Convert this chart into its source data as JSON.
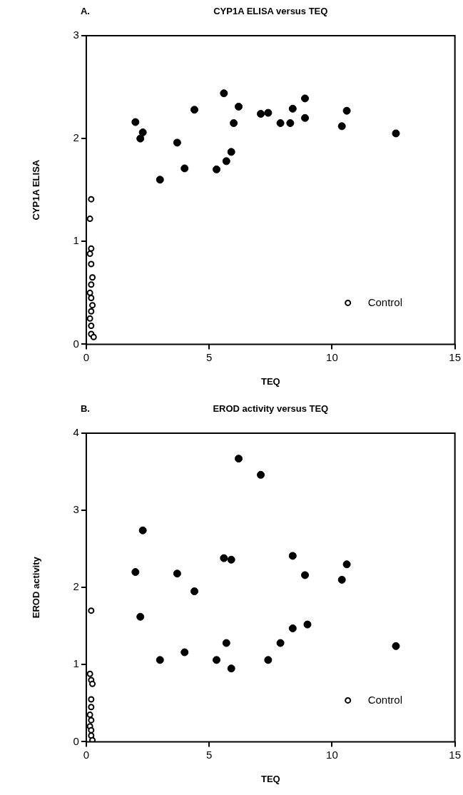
{
  "chart_data": [
    {
      "type": "scatter",
      "title": "CYP1A ELISA versus TEQ",
      "xlabel": "TEQ",
      "ylabel": "CYP1A ELISA",
      "annotations": [
        "A."
      ],
      "xlim": [
        0,
        15
      ],
      "xticks": [
        0,
        5,
        10,
        15
      ],
      "ylim": [
        0,
        3
      ],
      "yticks": [
        0,
        1,
        2,
        3
      ],
      "grid": false,
      "legend": "bottom right",
      "marker": "circle",
      "series": [
        {
          "name": "Control",
          "color": "#000000",
          "x": [
            0.2,
            0.15,
            0.2,
            0.15,
            0.2,
            0.25,
            0.2,
            0.15,
            0.2,
            0.25,
            0.2,
            0.15,
            0.2,
            0.2,
            0.3
          ],
          "values": [
            1.41,
            1.22,
            0.93,
            0.88,
            0.78,
            0.65,
            0.58,
            0.5,
            0.45,
            0.38,
            0.32,
            0.25,
            0.18,
            0.1,
            0.07
          ]
        },
        {
          "color": "#000000",
          "x": [
            2.0,
            2.2,
            2.3,
            3.0,
            3.7,
            4.0,
            4.4,
            5.3,
            5.6,
            5.7,
            5.9,
            6.0,
            6.2,
            7.1,
            7.4,
            7.9,
            8.3,
            8.4,
            8.9,
            8.9,
            10.4,
            10.6,
            12.6
          ],
          "values": [
            2.16,
            2.0,
            2.06,
            1.6,
            1.96,
            1.71,
            2.28,
            1.7,
            2.44,
            1.78,
            1.87,
            2.15,
            2.31,
            2.24,
            2.25,
            2.15,
            2.15,
            2.29,
            2.2,
            2.39,
            2.12,
            2.27,
            2.05
          ]
        }
      ]
    },
    {
      "type": "scatter",
      "title": "EROD activity versus TEQ",
      "xlabel": "TEQ",
      "ylabel": "EROD activity",
      "annotations": [
        "B."
      ],
      "xlim": [
        0,
        15
      ],
      "xticks": [
        0,
        5,
        10,
        15
      ],
      "ylim": [
        0,
        4
      ],
      "yticks": [
        0,
        1,
        2,
        3,
        4
      ],
      "grid": false,
      "legend": "bottom right",
      "marker": "circle",
      "series": [
        {
          "name": "Control",
          "color": "#000000",
          "x": [
            0.2,
            0.15,
            0.2,
            0.25,
            0.2,
            0.2,
            0.15,
            0.2,
            0.15,
            0.2,
            0.2,
            0.25
          ],
          "values": [
            1.7,
            0.88,
            0.8,
            0.75,
            0.55,
            0.45,
            0.35,
            0.28,
            0.2,
            0.15,
            0.08,
            0.02
          ]
        },
        {
          "color": "#000000",
          "x": [
            2.0,
            2.2,
            2.3,
            3.0,
            3.7,
            4.0,
            4.4,
            5.3,
            5.6,
            5.7,
            5.9,
            5.9,
            6.2,
            7.1,
            7.4,
            7.9,
            8.4,
            8.4,
            8.9,
            9.0,
            10.4,
            10.6,
            12.6
          ],
          "values": [
            2.2,
            1.62,
            2.74,
            1.06,
            2.18,
            1.16,
            1.95,
            1.06,
            2.38,
            1.28,
            0.95,
            2.36,
            3.67,
            3.46,
            1.06,
            1.28,
            1.47,
            2.41,
            2.16,
            1.52,
            2.1,
            2.3,
            1.24
          ]
        }
      ]
    }
  ]
}
